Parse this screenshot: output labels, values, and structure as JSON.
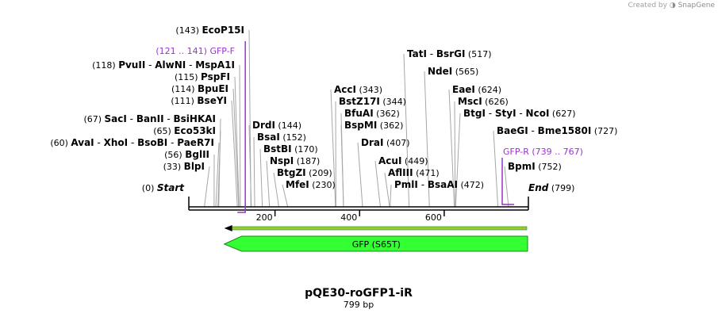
{
  "credit": {
    "prefix": "Created by",
    "brand": "SnapGene"
  },
  "plasmid": {
    "name": "pQE30-roGFP1-iR",
    "length": 799,
    "length_label": "799 bp"
  },
  "ticks": [
    200,
    400,
    600
  ],
  "boundaries": [
    {
      "pos": 0,
      "label": "Start"
    },
    {
      "pos": 799,
      "label": "End"
    }
  ],
  "sites": [
    {
      "id": "blpi",
      "names": [
        "BlpI"
      ],
      "pos": 33
    },
    {
      "id": "bglii",
      "names": [
        "BglII"
      ],
      "pos": 56
    },
    {
      "id": "avai",
      "names": [
        "AvaI",
        "XhoI",
        "BsoBI",
        "PaeR7I"
      ],
      "pos": 60
    },
    {
      "id": "eco53ki",
      "names": [
        "Eco53kI"
      ],
      "pos": 65
    },
    {
      "id": "saci",
      "names": [
        "SacI",
        "BanII",
        "BsiHKAI"
      ],
      "pos": 67
    },
    {
      "id": "bseyi",
      "names": [
        "BseYI"
      ],
      "pos": 111
    },
    {
      "id": "bpuei",
      "names": [
        "BpuEI"
      ],
      "pos": 114
    },
    {
      "id": "pspfi",
      "names": [
        "PspFI"
      ],
      "pos": 115
    },
    {
      "id": "pvuii",
      "names": [
        "PvuII",
        "AlwNI",
        "MspA1I"
      ],
      "pos": 118
    },
    {
      "id": "ecop15i",
      "names": [
        "EcoP15I"
      ],
      "pos": 143
    },
    {
      "id": "drdi",
      "names": [
        "DrdI"
      ],
      "pos": 144
    },
    {
      "id": "bsai",
      "names": [
        "BsaI"
      ],
      "pos": 152
    },
    {
      "id": "bstbi",
      "names": [
        "BstBI"
      ],
      "pos": 170
    },
    {
      "id": "nspi",
      "names": [
        "NspI"
      ],
      "pos": 187
    },
    {
      "id": "btgzi",
      "names": [
        "BtgZI"
      ],
      "pos": 209
    },
    {
      "id": "mfei",
      "names": [
        "MfeI"
      ],
      "pos": 230
    },
    {
      "id": "bspmi",
      "names": [
        "BspMI"
      ],
      "pos": 362
    },
    {
      "id": "bfuai",
      "names": [
        "BfuAI"
      ],
      "pos": 362
    },
    {
      "id": "bstz17i",
      "names": [
        "BstZ17I"
      ],
      "pos": 344
    },
    {
      "id": "acci",
      "names": [
        "AccI"
      ],
      "pos": 343
    },
    {
      "id": "drai",
      "names": [
        "DraI"
      ],
      "pos": 407
    },
    {
      "id": "acui",
      "names": [
        "AcuI"
      ],
      "pos": 449
    },
    {
      "id": "aflIII",
      "names": [
        "AflIII"
      ],
      "pos": 471
    },
    {
      "id": "pmli",
      "names": [
        "PmlI",
        "BsaAI"
      ],
      "pos": 472
    },
    {
      "id": "tati",
      "names": [
        "TatI",
        "BsrGI"
      ],
      "pos": 517
    },
    {
      "id": "ndei",
      "names": [
        "NdeI"
      ],
      "pos": 565
    },
    {
      "id": "eaei",
      "names": [
        "EaeI"
      ],
      "pos": 624
    },
    {
      "id": "msci",
      "names": [
        "MscI"
      ],
      "pos": 626
    },
    {
      "id": "btgi",
      "names": [
        "BtgI",
        "StyI",
        "NcoI"
      ],
      "pos": 627
    },
    {
      "id": "baegi",
      "names": [
        "BaeGI",
        "Bme1580I"
      ],
      "pos": 727
    },
    {
      "id": "bpmi",
      "names": [
        "BpmI"
      ],
      "pos": 752
    }
  ],
  "primers": [
    {
      "id": "gfp-f",
      "name": "GFP-F",
      "range": "(121 .. 141)",
      "start": 121,
      "end": 141,
      "direction": "forward"
    },
    {
      "id": "gfp-r",
      "name": "GFP-R",
      "range": "(739 .. 767)",
      "start": 739,
      "end": 767,
      "direction": "reverse"
    }
  ],
  "features": [
    {
      "id": "gfp",
      "label": "GFP (S65T)",
      "start": 80,
      "end": 799,
      "direction": "reverse",
      "color": "#33ff33"
    }
  ],
  "colors": {
    "primer": "#9a32cd",
    "feature": "#33ff33",
    "feature_stroke": "#1a8a1a",
    "orf": "#9acd32"
  }
}
